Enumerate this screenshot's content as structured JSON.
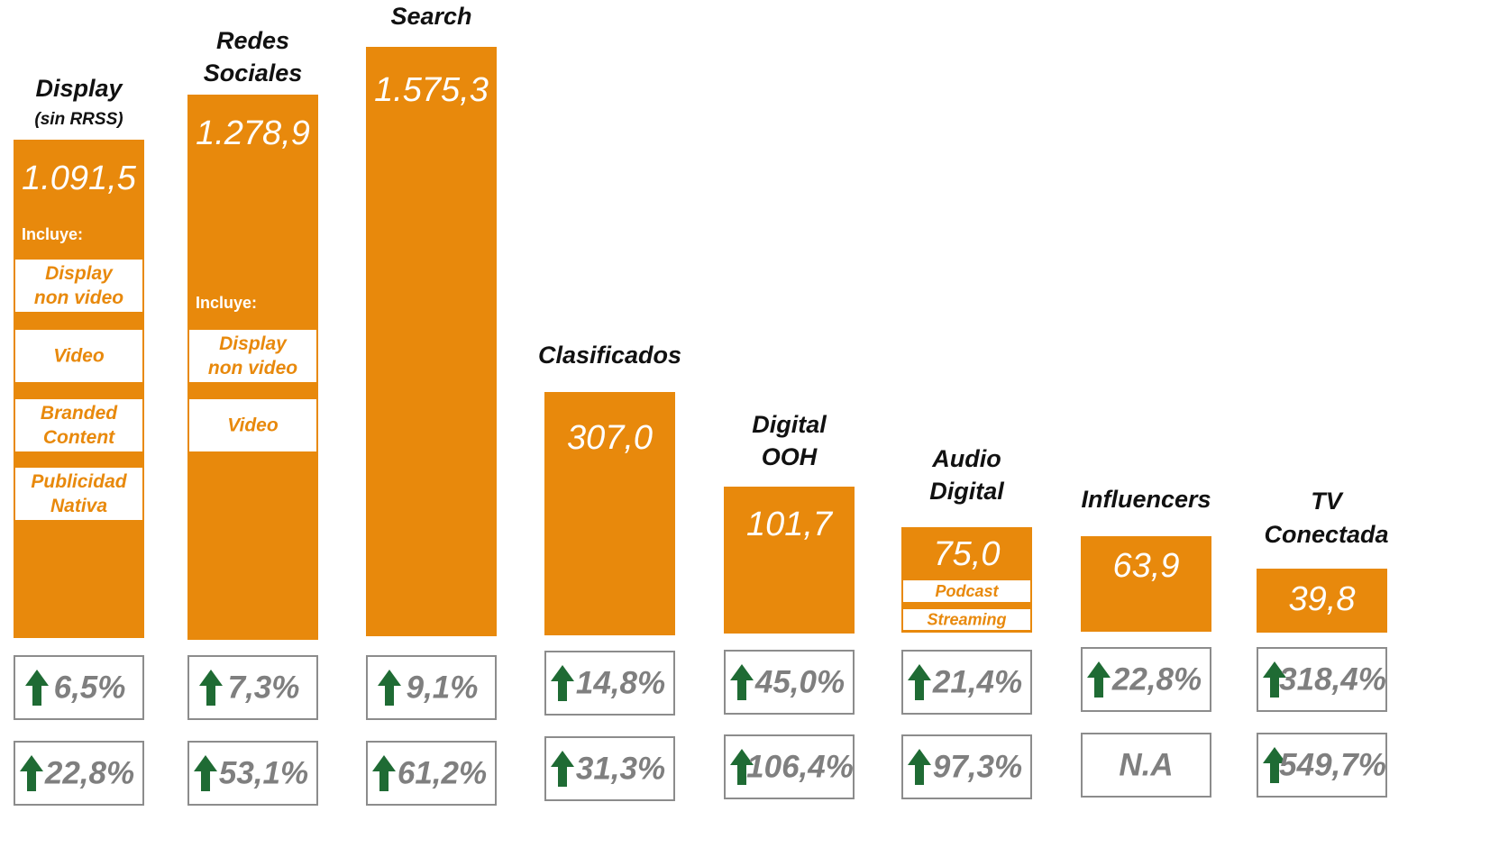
{
  "columns": [
    {
      "title": [
        "Display"
      ],
      "subtitle": "(sin RRSS)",
      "value": "1.091,5",
      "includes": "Incluye:",
      "items": [
        [
          "Display",
          "non video"
        ],
        [
          "Video"
        ],
        [
          "Branded",
          "Content"
        ],
        [
          "Publicidad",
          "Nativa"
        ]
      ],
      "growth": [
        "6,5%",
        "22,8%"
      ]
    },
    {
      "title": [
        "Redes",
        "Sociales"
      ],
      "value": "1.278,9",
      "includes": "Incluye:",
      "items": [
        [
          "Display",
          "non video"
        ],
        [
          "Video"
        ]
      ],
      "growth": [
        "7,3%",
        "53,1%"
      ]
    },
    {
      "title": [
        "Search"
      ],
      "value": "1.575,3",
      "growth": [
        "9,1%",
        "61,2%"
      ]
    },
    {
      "title": [
        "Clasificados"
      ],
      "value": "307,0",
      "growth": [
        "14,8%",
        "31,3%"
      ]
    },
    {
      "title": [
        "Digital",
        "OOH"
      ],
      "value": "101,7",
      "growth": [
        "45,0%",
        "106,4%"
      ]
    },
    {
      "title": [
        "Audio",
        "Digital"
      ],
      "value": "75,0",
      "items": [
        [
          "Podcast"
        ],
        [
          "Streaming"
        ]
      ],
      "growth": [
        "21,4%",
        "97,3%"
      ]
    },
    {
      "title": [
        "Influencers"
      ],
      "value": "63,9",
      "growth": [
        "22,8%",
        "N.A"
      ]
    },
    {
      "title": [
        "TV",
        "Conectada"
      ],
      "value": "39,8",
      "growth": [
        "318,4%",
        "549,7%"
      ]
    }
  ]
}
